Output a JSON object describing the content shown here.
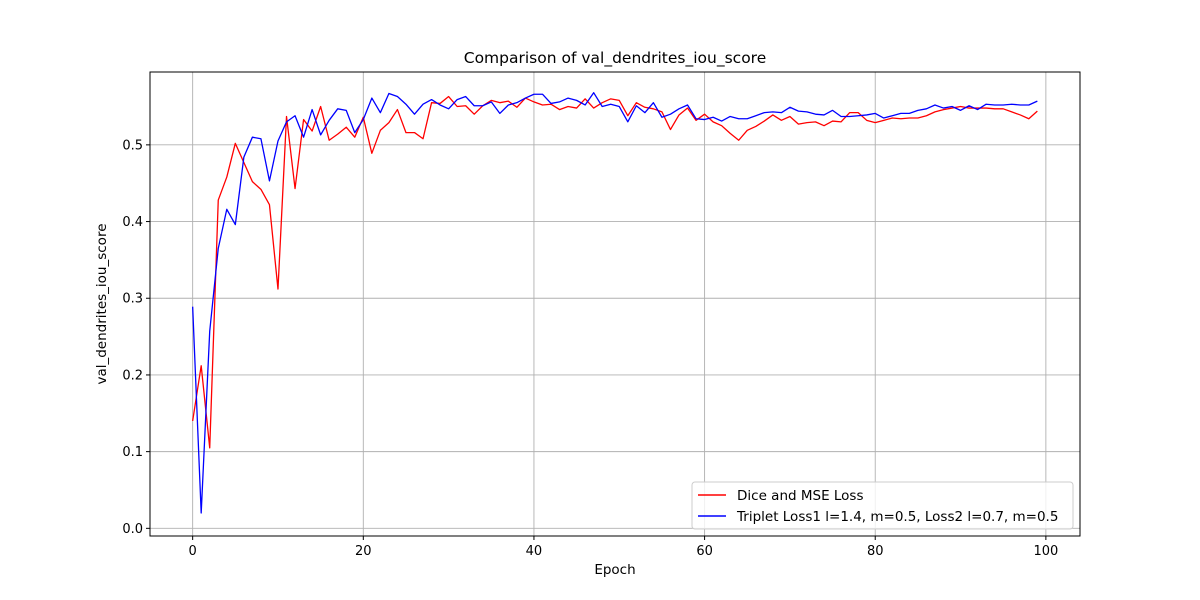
{
  "chart_data": {
    "type": "line",
    "title": "Comparison of val_dendrites_iou_score",
    "xlabel": "Epoch",
    "ylabel": "val_dendrites_iou_score",
    "xlim": [
      -5,
      104
    ],
    "ylim": [
      -0.01,
      0.595
    ],
    "xticks": [
      0,
      20,
      40,
      60,
      80,
      100
    ],
    "yticks": [
      0.0,
      0.1,
      0.2,
      0.3,
      0.4,
      0.5
    ],
    "xtick_labels": [
      "0",
      "20",
      "40",
      "60",
      "80",
      "100"
    ],
    "ytick_labels": [
      "0.0",
      "0.1",
      "0.2",
      "0.3",
      "0.4",
      "0.5"
    ],
    "grid": true,
    "legend_position": "lower-right",
    "series": [
      {
        "name": "Dice and MSE Loss",
        "color": "#ff0000",
        "values": [
          0.14,
          0.212,
          0.105,
          0.428,
          0.458,
          0.502,
          0.477,
          0.452,
          0.442,
          0.422,
          0.312,
          0.537,
          0.443,
          0.533,
          0.518,
          0.55,
          0.506,
          0.514,
          0.523,
          0.51,
          0.536,
          0.489,
          0.519,
          0.529,
          0.546,
          0.516,
          0.516,
          0.508,
          0.555,
          0.554,
          0.563,
          0.55,
          0.551,
          0.54,
          0.551,
          0.558,
          0.555,
          0.557,
          0.549,
          0.561,
          0.556,
          0.552,
          0.553,
          0.546,
          0.55,
          0.548,
          0.56,
          0.548,
          0.555,
          0.56,
          0.558,
          0.538,
          0.555,
          0.549,
          0.547,
          0.543,
          0.52,
          0.539,
          0.548,
          0.532,
          0.54,
          0.53,
          0.525,
          0.515,
          0.506,
          0.519,
          0.524,
          0.531,
          0.539,
          0.532,
          0.537,
          0.527,
          0.529,
          0.53,
          0.525,
          0.531,
          0.53,
          0.542,
          0.542,
          0.532,
          0.529,
          0.532,
          0.535,
          0.534,
          0.535,
          0.535,
          0.538,
          0.543,
          0.546,
          0.548,
          0.55,
          0.548,
          0.548,
          0.548,
          0.547,
          0.547,
          0.543,
          0.539,
          0.534,
          0.544
        ]
      },
      {
        "name": "Triplet Loss1 l=1.4, m=0.5, Loss2 l=0.7, m=0.5",
        "color": "#0000ff",
        "values": [
          0.289,
          0.02,
          0.257,
          0.365,
          0.416,
          0.396,
          0.484,
          0.51,
          0.508,
          0.453,
          0.505,
          0.53,
          0.538,
          0.51,
          0.546,
          0.513,
          0.532,
          0.547,
          0.545,
          0.516,
          0.533,
          0.561,
          0.542,
          0.567,
          0.563,
          0.553,
          0.54,
          0.553,
          0.559,
          0.552,
          0.547,
          0.559,
          0.563,
          0.551,
          0.551,
          0.556,
          0.541,
          0.552,
          0.555,
          0.561,
          0.566,
          0.566,
          0.554,
          0.556,
          0.561,
          0.558,
          0.552,
          0.568,
          0.55,
          0.553,
          0.55,
          0.53,
          0.551,
          0.542,
          0.555,
          0.536,
          0.54,
          0.547,
          0.552,
          0.534,
          0.533,
          0.536,
          0.531,
          0.537,
          0.534,
          0.534,
          0.538,
          0.542,
          0.543,
          0.542,
          0.549,
          0.544,
          0.543,
          0.54,
          0.539,
          0.545,
          0.537,
          0.537,
          0.538,
          0.539,
          0.541,
          0.535,
          0.538,
          0.541,
          0.541,
          0.545,
          0.547,
          0.552,
          0.548,
          0.55,
          0.545,
          0.551,
          0.546,
          0.553,
          0.552,
          0.552,
          0.553,
          0.552,
          0.552,
          0.557
        ]
      }
    ]
  }
}
